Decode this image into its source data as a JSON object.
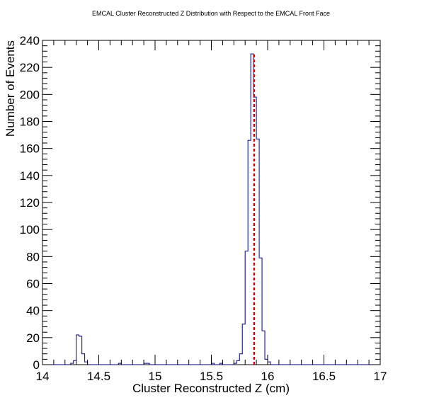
{
  "chart_data": {
    "type": "histogram",
    "title": "EMCAL Cluster Reconstructed Z Distribution with Respect to the EMCAL Front Face",
    "xlabel": "Cluster Reconstructed Z (cm)",
    "ylabel": "Number of Events",
    "xlim": [
      14,
      17
    ],
    "ylim": [
      0,
      240
    ],
    "bin_width": 0.025,
    "x_ticks": [
      "14",
      "14.5",
      "15",
      "15.5",
      "16",
      "16.5",
      "17"
    ],
    "x_tick_values": [
      14,
      14.5,
      15,
      15.5,
      16,
      16.5,
      17
    ],
    "y_ticks": [
      "0",
      "20",
      "40",
      "60",
      "80",
      "100",
      "120",
      "140",
      "160",
      "180",
      "200",
      "220",
      "240"
    ],
    "y_tick_values": [
      0,
      20,
      40,
      60,
      80,
      100,
      120,
      140,
      160,
      180,
      200,
      220,
      240
    ],
    "bins": [
      {
        "x": 14.25,
        "y": 1
      },
      {
        "x": 14.275,
        "y": 3
      },
      {
        "x": 14.3,
        "y": 22
      },
      {
        "x": 14.325,
        "y": 21
      },
      {
        "x": 14.35,
        "y": 8
      },
      {
        "x": 14.375,
        "y": 2
      },
      {
        "x": 14.675,
        "y": 1
      },
      {
        "x": 14.9,
        "y": 1
      },
      {
        "x": 14.925,
        "y": 1
      },
      {
        "x": 15.5,
        "y": 1
      },
      {
        "x": 15.575,
        "y": 1
      },
      {
        "x": 15.7,
        "y": 1
      },
      {
        "x": 15.725,
        "y": 3
      },
      {
        "x": 15.75,
        "y": 8
      },
      {
        "x": 15.775,
        "y": 30
      },
      {
        "x": 15.8,
        "y": 84
      },
      {
        "x": 15.825,
        "y": 166
      },
      {
        "x": 15.85,
        "y": 230
      },
      {
        "x": 15.875,
        "y": 198
      },
      {
        "x": 15.9,
        "y": 167
      },
      {
        "x": 15.925,
        "y": 79
      },
      {
        "x": 15.95,
        "y": 25
      },
      {
        "x": 15.975,
        "y": 4
      },
      {
        "x": 16.0,
        "y": 2
      }
    ],
    "reference_line": {
      "x": 15.88,
      "color": "#dd0000",
      "style": "dashed"
    },
    "histogram_color": "#000080"
  }
}
